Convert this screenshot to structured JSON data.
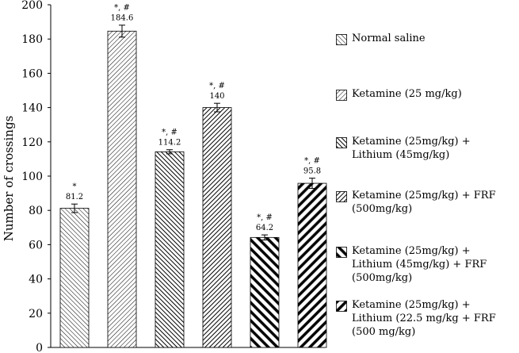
{
  "chart_data": {
    "type": "bar",
    "title": "",
    "xlabel": "",
    "ylabel": "Number of crossings",
    "ylim": [
      0,
      200
    ],
    "yticks": [
      0,
      20,
      40,
      60,
      80,
      100,
      120,
      140,
      160,
      180,
      200
    ],
    "grid": false,
    "legend_position": "right",
    "series": [
      {
        "name": "Normal saline",
        "value": 81.2,
        "error": 2.5,
        "annotation": "*",
        "pattern": "p0"
      },
      {
        "name": "Ketamine (25 mg/kg)",
        "value": 184.6,
        "error": 3.5,
        "annotation": "*, #",
        "pattern": "p1"
      },
      {
        "name": "Ketamine (25mg/kg) +\nLithium (45mg/kg)",
        "value": 114.2,
        "error": 1.2,
        "annotation": "*, #",
        "pattern": "p2"
      },
      {
        "name": "Ketamine (25mg/kg) + FRF\n(500mg/kg)",
        "value": 140,
        "error": 2.5,
        "annotation": "*, #",
        "pattern": "p3"
      },
      {
        "name": "Ketamine (25mg/kg) +\nLithium (45mg/kg) + FRF\n(500mg/kg)",
        "value": 64.2,
        "error": 1.5,
        "annotation": "*, #",
        "pattern": "p4"
      },
      {
        "name": "Ketamine (25mg/kg) +\nLithium (22.5 mg/kg + FRF\n(500 mg/kg)",
        "value": 95.8,
        "error": 3.0,
        "annotation": "*, #",
        "pattern": "p5"
      }
    ]
  }
}
